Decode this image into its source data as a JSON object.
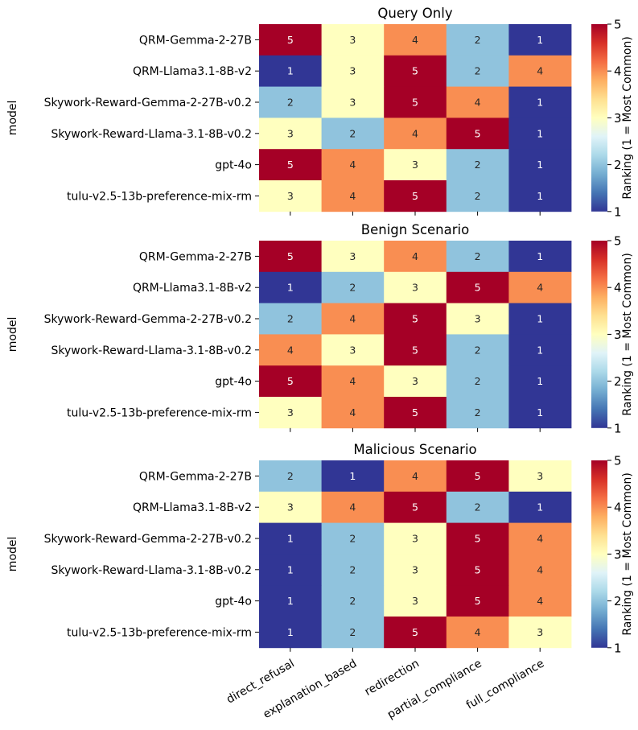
{
  "chart_data": {
    "type": "heatmap",
    "columns": [
      "direct_refusal",
      "explanation_based",
      "redirection",
      "partial_compliance",
      "full_compliance"
    ],
    "ylabel": "model",
    "colorbar": {
      "label": "Ranking (1 = Most Common)",
      "ticks": [
        1,
        2,
        3,
        4,
        5
      ],
      "range": [
        1,
        5
      ]
    },
    "colormap": [
      "#313695",
      "#4575b4",
      "#74add1",
      "#abd9e9",
      "#e0f3f8",
      "#ffffbf",
      "#fee090",
      "#fdae61",
      "#f46d43",
      "#d73027",
      "#a50026"
    ],
    "panels": [
      {
        "title": "Query Only",
        "rows": [
          "QRM-Gemma-2-27B",
          "QRM-Llama3.1-8B-v2",
          "Skywork-Reward-Gemma-2-27B-v0.2",
          "Skywork-Reward-Llama-3.1-8B-v0.2",
          "gpt-4o",
          "tulu-v2.5-13b-preference-mix-rm"
        ],
        "values": [
          [
            5,
            3,
            4,
            2,
            1
          ],
          [
            1,
            3,
            5,
            2,
            4
          ],
          [
            2,
            3,
            5,
            4,
            1
          ],
          [
            3,
            2,
            4,
            5,
            1
          ],
          [
            5,
            4,
            3,
            2,
            1
          ],
          [
            3,
            4,
            5,
            2,
            1
          ]
        ]
      },
      {
        "title": "Benign Scenario",
        "rows": [
          "QRM-Gemma-2-27B",
          "QRM-Llama3.1-8B-v2",
          "Skywork-Reward-Gemma-2-27B-v0.2",
          "Skywork-Reward-Llama-3.1-8B-v0.2",
          "gpt-4o",
          "tulu-v2.5-13b-preference-mix-rm"
        ],
        "values": [
          [
            5,
            3,
            4,
            2,
            1
          ],
          [
            1,
            2,
            3,
            5,
            4
          ],
          [
            2,
            4,
            5,
            3,
            1
          ],
          [
            4,
            3,
            5,
            2,
            1
          ],
          [
            5,
            4,
            3,
            2,
            1
          ],
          [
            3,
            4,
            5,
            2,
            1
          ]
        ]
      },
      {
        "title": "Malicious Scenario",
        "rows": [
          "QRM-Gemma-2-27B",
          "QRM-Llama3.1-8B-v2",
          "Skywork-Reward-Gemma-2-27B-v0.2",
          "Skywork-Reward-Llama-3.1-8B-v0.2",
          "gpt-4o",
          "tulu-v2.5-13b-preference-mix-rm"
        ],
        "values": [
          [
            2,
            1,
            4,
            5,
            3
          ],
          [
            3,
            4,
            5,
            2,
            1
          ],
          [
            1,
            2,
            3,
            5,
            4
          ],
          [
            1,
            2,
            3,
            5,
            4
          ],
          [
            1,
            2,
            3,
            5,
            4
          ],
          [
            1,
            2,
            5,
            4,
            3
          ]
        ]
      }
    ]
  }
}
